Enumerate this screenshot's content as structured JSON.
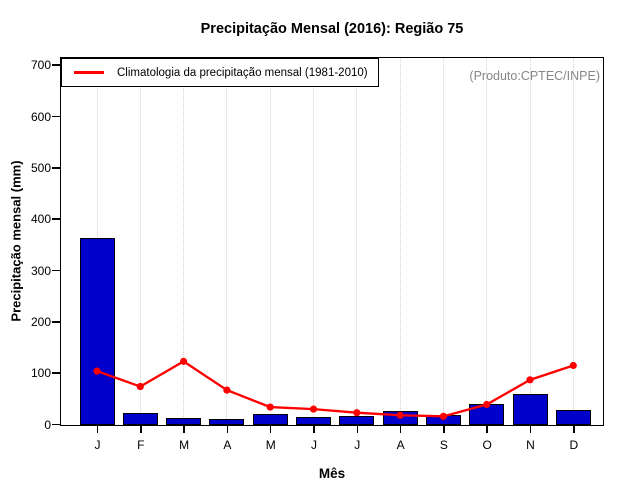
{
  "chart_data": {
    "type": "bar",
    "title": "Precipitação Mensal (2016): Região 75",
    "xlabel": "Mês",
    "ylabel": "Precipitação mensal (mm)",
    "annotation": "(Produto:CPTEC/INPE)",
    "categories": [
      "J",
      "F",
      "M",
      "A",
      "M",
      "J",
      "J",
      "A",
      "S",
      "O",
      "N",
      "D"
    ],
    "series": [
      {
        "name": "Precipitação mensal 2016",
        "type": "bar",
        "color": "#0000cc",
        "values": [
          365,
          23,
          14,
          11,
          21,
          15,
          18,
          28,
          20,
          40,
          60,
          30
        ]
      },
      {
        "name": "Climatologia da precipitação mensal (1981-2010)",
        "type": "line",
        "color": "#ff0000",
        "values": [
          103,
          73,
          122,
          66,
          33,
          29,
          22,
          17,
          15,
          38,
          86,
          114
        ]
      }
    ],
    "ylim": [
      0,
      700
    ],
    "yticks": [
      0,
      100,
      200,
      300,
      400,
      500,
      600,
      700
    ],
    "legend_position": "top-left",
    "grid": "vertical-dotted",
    "grid_color": "#d4d4d4",
    "bar_border_color": "#000000"
  }
}
